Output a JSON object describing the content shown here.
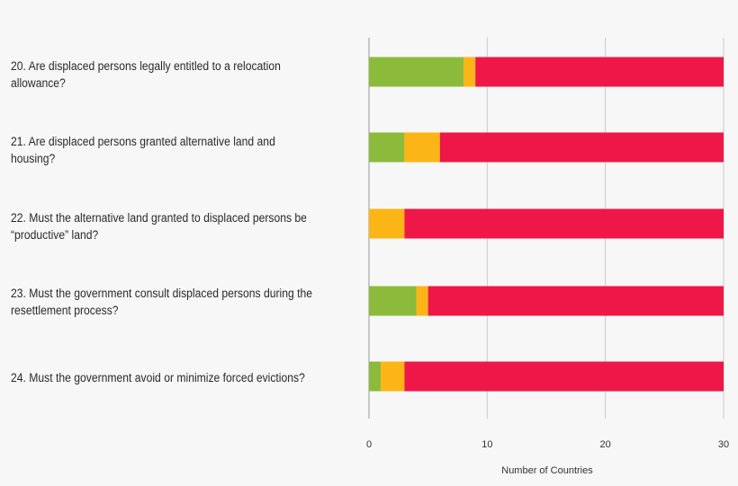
{
  "chart_data": {
    "type": "bar",
    "orientation": "horizontal",
    "stacked": true,
    "categories": [
      "20. Are displaced persons legally entitled to a relocation allowance?",
      "21. Are displaced persons granted alternative land and housing?",
      "22. Must the alternative land granted to displaced persons be “productive” land?",
      "23. Must the government consult displaced persons during the resettlement process?",
      "24. Must the government avoid or minimize forced evictions?"
    ],
    "series": [
      {
        "color": "#8cbb3b",
        "values": [
          8,
          3,
          0,
          4,
          1
        ]
      },
      {
        "color": "#fbb516",
        "values": [
          1,
          3,
          3,
          1,
          2
        ]
      },
      {
        "color": "#ee1747",
        "values": [
          21,
          24,
          27,
          25,
          27
        ]
      }
    ],
    "xlabel": "Number of Countries",
    "xlim": [
      0,
      30
    ],
    "xticks": [
      0,
      10,
      20,
      30
    ],
    "grid": true,
    "legend": "none"
  }
}
